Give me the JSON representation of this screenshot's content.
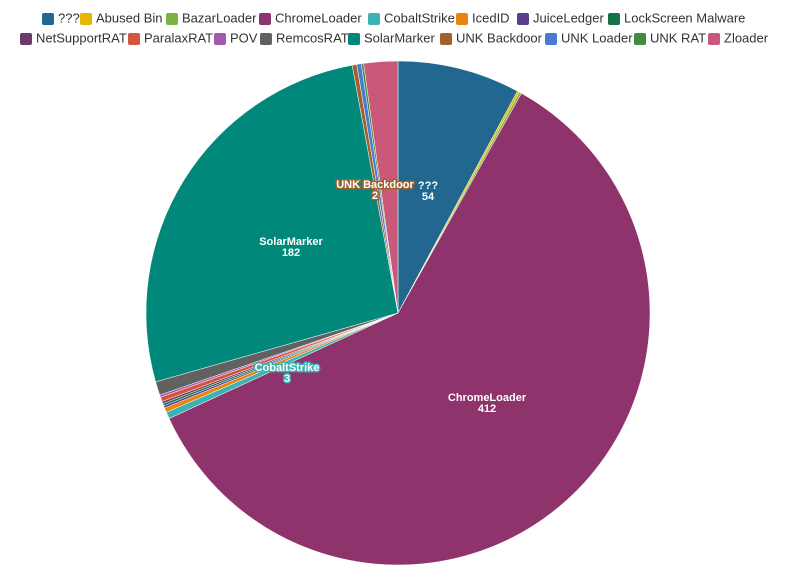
{
  "chart_data": {
    "type": "pie",
    "categories": [
      "???",
      "Abused Bin",
      "BazarLoader",
      "ChromeLoader",
      "CobaltStrike",
      "IcedID",
      "JuiceLedger",
      "LockScreen Malware",
      "NetSupportRAT",
      "ParalaxRAT",
      "POV",
      "RemcosRAT",
      "SolarMarker",
      "UNK Backdoor",
      "UNK Loader",
      "UNK RAT",
      "Zloader"
    ],
    "values": [
      54,
      1,
      1,
      412,
      3,
      2,
      1,
      1,
      1,
      2,
      1,
      6,
      182,
      2,
      2,
      1,
      15
    ],
    "colors": [
      "#22678f",
      "#e6b800",
      "#7cb342",
      "#8e336c",
      "#3bb3b3",
      "#e8850c",
      "#5b3f8c",
      "#177245",
      "#6b3a6b",
      "#d4543c",
      "#a05ab0",
      "#616161",
      "#00897b",
      "#a0612e",
      "#4b7bd1",
      "#3e8e3e",
      "#c9587a"
    ],
    "legend": "top"
  }
}
